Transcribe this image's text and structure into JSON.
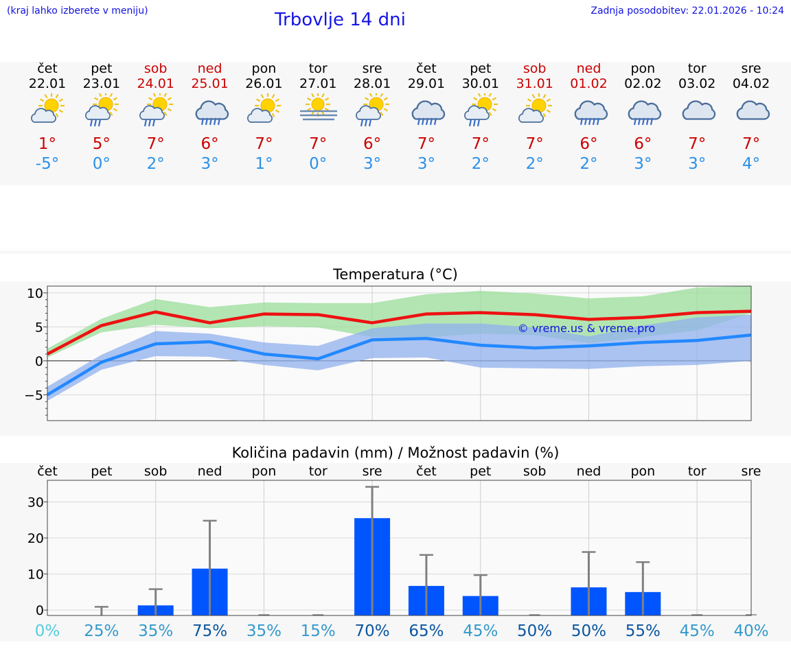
{
  "header": {
    "hint": "(kraj lahko izberete v meniju)",
    "title": "Trbovlje 14 dni",
    "updated": "Zadnja posodobitev: 22.01.2026 - 10:24"
  },
  "colors": {
    "weekday": "#000000",
    "weekend": "#cc0000",
    "tmax": "#cc0000",
    "tmin": "#2a90e8"
  },
  "days": [
    {
      "day": "čet",
      "date": "22.01",
      "weekend": false,
      "icon": "sun-cloud",
      "tmax": "1°",
      "tmin": "-5°"
    },
    {
      "day": "pet",
      "date": "23.01",
      "weekend": false,
      "icon": "sun-cloud-rain",
      "tmax": "5°",
      "tmin": "0°"
    },
    {
      "day": "sob",
      "date": "24.01",
      "weekend": true,
      "icon": "sun-cloud-rain",
      "tmax": "7°",
      "tmin": "2°"
    },
    {
      "day": "ned",
      "date": "25.01",
      "weekend": true,
      "icon": "cloud-rain",
      "tmax": "6°",
      "tmin": "3°"
    },
    {
      "day": "pon",
      "date": "26.01",
      "weekend": false,
      "icon": "sun-cloud",
      "tmax": "7°",
      "tmin": "1°"
    },
    {
      "day": "tor",
      "date": "27.01",
      "weekend": false,
      "icon": "fog-sun",
      "tmax": "7°",
      "tmin": "0°"
    },
    {
      "day": "sre",
      "date": "28.01",
      "weekend": false,
      "icon": "sun-cloud-rain",
      "tmax": "6°",
      "tmin": "3°"
    },
    {
      "day": "čet",
      "date": "29.01",
      "weekend": false,
      "icon": "cloud-rain",
      "tmax": "7°",
      "tmin": "3°"
    },
    {
      "day": "pet",
      "date": "30.01",
      "weekend": false,
      "icon": "sun-cloud-rain",
      "tmax": "7°",
      "tmin": "2°"
    },
    {
      "day": "sob",
      "date": "31.01",
      "weekend": true,
      "icon": "sun-cloud",
      "tmax": "7°",
      "tmin": "2°"
    },
    {
      "day": "ned",
      "date": "01.02",
      "weekend": true,
      "icon": "cloud-rain",
      "tmax": "6°",
      "tmin": "2°"
    },
    {
      "day": "pon",
      "date": "02.02",
      "weekend": false,
      "icon": "cloud-rain",
      "tmax": "6°",
      "tmin": "3°"
    },
    {
      "day": "tor",
      "date": "03.02",
      "weekend": false,
      "icon": "cloud",
      "tmax": "7°",
      "tmin": "3°"
    },
    {
      "day": "sre",
      "date": "04.02",
      "weekend": false,
      "icon": "cloud",
      "tmax": "7°",
      "tmin": "4°"
    }
  ],
  "chart_data": [
    {
      "type": "line",
      "title": "Temperatura (°C)",
      "ylim": [
        -8.8,
        11
      ],
      "yticks": [
        10,
        5,
        0,
        -5
      ],
      "ytick_labels": [
        "10",
        "5",
        "0",
        "−5"
      ],
      "watermark": "© vreme.us & vreme.pro",
      "x": [
        0,
        1,
        2,
        3,
        4,
        5,
        6,
        7,
        8,
        9,
        10,
        11,
        12,
        13
      ],
      "series": [
        {
          "name": "max",
          "color": "#ee1111",
          "values": [
            1.0,
            5.2,
            7.2,
            5.6,
            6.9,
            6.8,
            5.6,
            6.9,
            7.1,
            6.8,
            6.1,
            6.4,
            7.1,
            7.3
          ]
        },
        {
          "name": "min",
          "color": "#2288ff",
          "values": [
            -5.0,
            -0.2,
            2.5,
            2.8,
            1.0,
            0.3,
            3.1,
            3.3,
            2.3,
            1.9,
            2.2,
            2.7,
            3.0,
            3.8
          ]
        }
      ],
      "bands": [
        {
          "name": "max-range",
          "color": "#99dd99",
          "low": [
            0.5,
            4.2,
            5.3,
            4.8,
            5.1,
            4.9,
            3.5,
            3.5,
            4.0,
            3.8,
            2.6,
            3.5,
            4.5,
            7.0
          ],
          "high": [
            1.8,
            6.2,
            9.1,
            7.9,
            8.6,
            8.5,
            8.5,
            9.8,
            10.3,
            9.9,
            9.2,
            9.5,
            10.8,
            11.0
          ]
        },
        {
          "name": "min-range",
          "color": "#90b0ee",
          "low": [
            -5.9,
            -1.3,
            0.7,
            0.6,
            -0.6,
            -1.4,
            0.4,
            0.5,
            -1.0,
            -1.1,
            -1.2,
            -0.8,
            -0.6,
            0.0
          ],
          "high": [
            -3.8,
            0.9,
            4.4,
            4.0,
            2.7,
            2.2,
            4.8,
            5.5,
            5.5,
            4.9,
            3.6,
            5.2,
            6.4,
            6.8
          ]
        }
      ]
    },
    {
      "type": "bar",
      "title": "Količina padavin (mm) / Možnost padavin (%)",
      "categories": [
        "čet",
        "pet",
        "sob",
        "ned",
        "pon",
        "tor",
        "sre",
        "čet",
        "pet",
        "sob",
        "ned",
        "pon",
        "tor",
        "sre"
      ],
      "ylim": [
        -1.5,
        36
      ],
      "yticks": [
        30,
        20,
        10,
        0
      ],
      "values": [
        0,
        0,
        1.3,
        11.5,
        0,
        0,
        25.5,
        6.7,
        3.9,
        0,
        6.3,
        5.0,
        0,
        0
      ],
      "err_high": [
        0,
        0.9,
        5.8,
        24.8,
        0,
        0,
        34.2,
        15.3,
        9.7,
        0,
        16.1,
        13.3,
        0,
        0
      ],
      "bar_color": "#0055ff",
      "probability": [
        "0%",
        "25%",
        "35%",
        "75%",
        "35%",
        "15%",
        "70%",
        "65%",
        "45%",
        "50%",
        "50%",
        "55%",
        "45%",
        "40%"
      ],
      "probability_colors": [
        "#55ccdd",
        "#3399cc",
        "#3399cc",
        "#0a55a0",
        "#3399cc",
        "#3399cc",
        "#0a55a0",
        "#0a55a0",
        "#3399cc",
        "#0a55a0",
        "#0a55a0",
        "#0a55a0",
        "#3399cc",
        "#3399cc"
      ]
    }
  ]
}
